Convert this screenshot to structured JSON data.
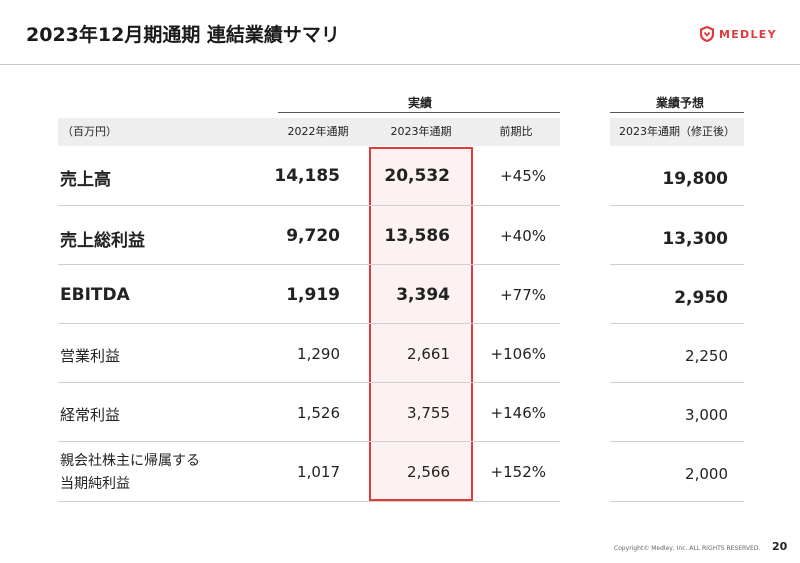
{
  "header": {
    "title": "2023年12月期通期 連結業績サマリ",
    "logo_text": "MEDLEY",
    "logo_color": "#e03a3a"
  },
  "table": {
    "group_actual": "実績",
    "group_forecast": "業績予想",
    "unit_label": "（百万円）",
    "columns": {
      "fy2022": "2022年通期",
      "fy2023": "2023年通期",
      "yoy": "前期比",
      "forecast": "2023年通期（修正後）"
    },
    "highlight_color": "#e03a3a",
    "rows": [
      {
        "label": "売上高",
        "fy2022": "14,185",
        "fy2023": "20,532",
        "yoy": "+45%",
        "forecast": "19,800"
      },
      {
        "label": "売上総利益",
        "fy2022": "9,720",
        "fy2023": "13,586",
        "yoy": "+40%",
        "forecast": "13,300"
      },
      {
        "label": "EBITDA",
        "fy2022": "1,919",
        "fy2023": "3,394",
        "yoy": "+77%",
        "forecast": "2,950"
      },
      {
        "label": "営業利益",
        "fy2022": "1,290",
        "fy2023": "2,661",
        "yoy": "+106%",
        "forecast": "2,250"
      },
      {
        "label": "経常利益",
        "fy2022": "1,526",
        "fy2023": "3,755",
        "yoy": "+146%",
        "forecast": "3,000"
      },
      {
        "label_line1": "親会社株主に帰属する",
        "label_line2": "当期純利益",
        "fy2022": "1,017",
        "fy2023": "2,566",
        "yoy": "+152%",
        "forecast": "2,000"
      }
    ]
  },
  "footer": {
    "copyright": "Copyright© Medley, Inc. ALL RIGHTS RESERVED.",
    "page_number": "20"
  }
}
